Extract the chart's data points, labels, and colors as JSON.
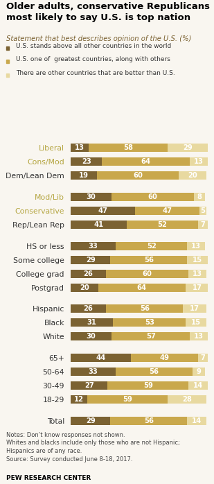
{
  "title": "Older adults, conservative Republicans\nmost likely to say U.S. is top nation",
  "subtitle": "Statement that best describes opinion of the U.S. (%)",
  "legend_labels": [
    "U.S. stands above all other countries in the world",
    "U.S. one of  greatest countries, along with others",
    "There are other countries that are better than U.S."
  ],
  "colors": [
    "#7B6232",
    "#C9A84C",
    "#E8D9A0"
  ],
  "categories": [
    "Total",
    "18-29",
    "30-49",
    "50-64",
    "65+",
    "White",
    "Black",
    "Hispanic",
    "Postgrad",
    "College grad",
    "Some college",
    "HS or less",
    "Rep/Lean Rep",
    "Conservative",
    "Mod/Lib",
    "Dem/Lean Dem",
    "Cons/Mod",
    "Liberal"
  ],
  "label_colors": [
    "#333333",
    "#333333",
    "#333333",
    "#333333",
    "#333333",
    "#333333",
    "#333333",
    "#333333",
    "#333333",
    "#333333",
    "#333333",
    "#333333",
    "#333333",
    "#b5a642",
    "#b5a642",
    "#333333",
    "#b5a642",
    "#b5a642"
  ],
  "values": [
    [
      29,
      56,
      14
    ],
    [
      12,
      59,
      28
    ],
    [
      27,
      59,
      14
    ],
    [
      33,
      56,
      9
    ],
    [
      44,
      49,
      7
    ],
    [
      30,
      57,
      13
    ],
    [
      31,
      53,
      15
    ],
    [
      26,
      56,
      17
    ],
    [
      20,
      64,
      17
    ],
    [
      26,
      60,
      13
    ],
    [
      29,
      56,
      15
    ],
    [
      33,
      52,
      13
    ],
    [
      41,
      52,
      7
    ],
    [
      47,
      47,
      5
    ],
    [
      30,
      60,
      8
    ],
    [
      19,
      60,
      20
    ],
    [
      23,
      64,
      13
    ],
    [
      13,
      58,
      29
    ]
  ],
  "notes": "Notes: Don’t know responses not shown.\nWhites and blacks include only those who are not Hispanic;\nHispanics are of any race.\nSource: Survey conducted June 8-18, 2017.",
  "source": "PEW RESEARCH CENTER",
  "background_color": "#f9f6f0"
}
